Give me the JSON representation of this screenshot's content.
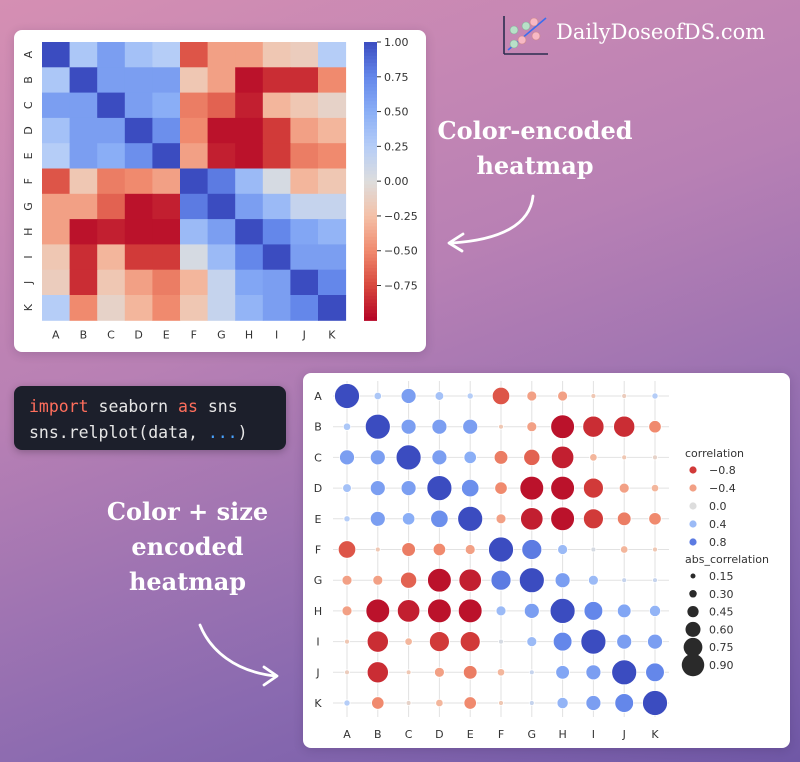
{
  "brand": {
    "name": "DailyDoseofDS.com"
  },
  "captions": {
    "top": [
      "Color-encoded",
      "heatmap"
    ],
    "bottom": [
      "Color + size",
      "encoded",
      "heatmap"
    ]
  },
  "code": {
    "line1": {
      "kw1": "import",
      "mid": " seaborn ",
      "kw2": "as",
      "end": " sns"
    },
    "line2": {
      "pre": "sns.relplot(data, ",
      "dots": "...",
      "post": ")"
    }
  },
  "colors": {
    "high_positive": "#3b4cc0",
    "neutral": "#dddddd",
    "high_negative": "#b40426"
  },
  "chart_data": [
    {
      "type": "heatmap",
      "title": "",
      "labels": [
        "A",
        "B",
        "C",
        "D",
        "E",
        "F",
        "G",
        "H",
        "I",
        "J",
        "K"
      ],
      "matrix": [
        [
          1.0,
          0.3,
          0.6,
          0.35,
          0.25,
          -0.7,
          -0.4,
          -0.4,
          -0.2,
          -0.15,
          0.25
        ],
        [
          0.3,
          1.0,
          0.6,
          0.6,
          0.6,
          -0.2,
          -0.4,
          -0.95,
          -0.85,
          -0.85,
          -0.5
        ],
        [
          0.6,
          0.6,
          1.0,
          0.6,
          0.5,
          -0.55,
          -0.65,
          -0.9,
          -0.3,
          -0.2,
          -0.1
        ],
        [
          0.35,
          0.6,
          0.6,
          1.0,
          0.7,
          -0.5,
          -0.95,
          -0.95,
          -0.8,
          -0.4,
          -0.3
        ],
        [
          0.25,
          0.6,
          0.5,
          0.7,
          1.0,
          -0.4,
          -0.9,
          -0.95,
          -0.8,
          -0.55,
          -0.5
        ],
        [
          -0.7,
          -0.2,
          -0.55,
          -0.5,
          -0.4,
          1.0,
          0.8,
          0.4,
          0.05,
          -0.3,
          -0.2
        ],
        [
          -0.4,
          -0.4,
          -0.65,
          -0.95,
          -0.9,
          0.8,
          1.0,
          0.6,
          0.4,
          0.15,
          0.15
        ],
        [
          -0.4,
          -0.95,
          -0.9,
          -0.95,
          -0.95,
          0.4,
          0.6,
          1.0,
          0.75,
          0.55,
          0.45
        ],
        [
          -0.2,
          -0.85,
          -0.3,
          -0.8,
          -0.8,
          0.05,
          0.4,
          0.75,
          1.0,
          0.6,
          0.6
        ],
        [
          -0.15,
          -0.85,
          -0.2,
          -0.4,
          -0.55,
          -0.3,
          0.15,
          0.55,
          0.6,
          1.0,
          0.75
        ],
        [
          0.25,
          -0.5,
          -0.1,
          -0.3,
          -0.5,
          -0.2,
          0.15,
          0.45,
          0.6,
          0.75,
          1.0
        ]
      ],
      "colorbar": {
        "min": -1.0,
        "max": 1.0,
        "ticks": [
          "1.00",
          "0.75",
          "0.50",
          "0.25",
          "0.00",
          "−0.25",
          "−0.50",
          "−0.75"
        ]
      },
      "colormap": "coolwarm"
    },
    {
      "type": "scatter",
      "encoding": "color + size",
      "labels": [
        "A",
        "B",
        "C",
        "D",
        "E",
        "F",
        "G",
        "H",
        "I",
        "J",
        "K"
      ],
      "legend": {
        "color_title": "correlation",
        "color_items": [
          {
            "label": "−0.8",
            "value": -0.8
          },
          {
            "label": "−0.4",
            "value": -0.4
          },
          {
            "label": "0.0",
            "value": 0.0
          },
          {
            "label": "0.4",
            "value": 0.4
          },
          {
            "label": "0.8",
            "value": 0.8
          }
        ],
        "size_title": "abs_correlation",
        "size_items": [
          {
            "label": "0.15",
            "value": 0.15
          },
          {
            "label": "0.30",
            "value": 0.3
          },
          {
            "label": "0.45",
            "value": 0.45
          },
          {
            "label": "0.60",
            "value": 0.6
          },
          {
            "label": "0.75",
            "value": 0.75
          },
          {
            "label": "0.90",
            "value": 0.9
          }
        ],
        "placement": "right"
      },
      "grid": true
    }
  ]
}
